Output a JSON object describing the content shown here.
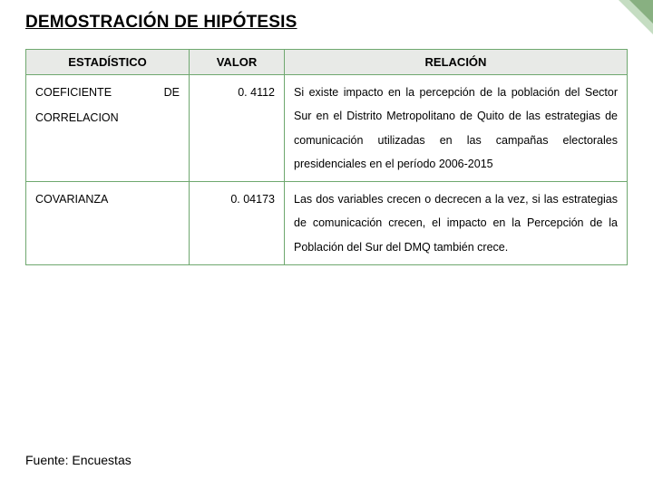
{
  "title": "DEMOSTRACIÓN DE HIPÓTESIS",
  "headers": {
    "stat": "ESTADÍSTICO",
    "valor": "VALOR",
    "relacion": "RELACIÓN"
  },
  "rows": [
    {
      "stat": "COEFICIENTE DE CORRELACION",
      "valor": "0. 4112",
      "relacion": "Si existe impacto en la percepción de la población del Sector Sur en el Distrito Metropolitano de Quito de las estrategias de comunicación utilizadas en las campañas electorales presidenciales en el período 2006-2015"
    },
    {
      "stat": "COVARIANZA",
      "valor": "0. 04173",
      "relacion": "Las dos variables crecen o decrecen a la vez, si las estrategias de comunicación crecen, el impacto en la Percepción de la Población del Sur del DMQ también crece."
    }
  ],
  "source": "Fuente: Encuestas",
  "colors": {
    "header_bg": "#e8eae7",
    "border": "#6fa86f",
    "corner": "#5a9e4f"
  }
}
